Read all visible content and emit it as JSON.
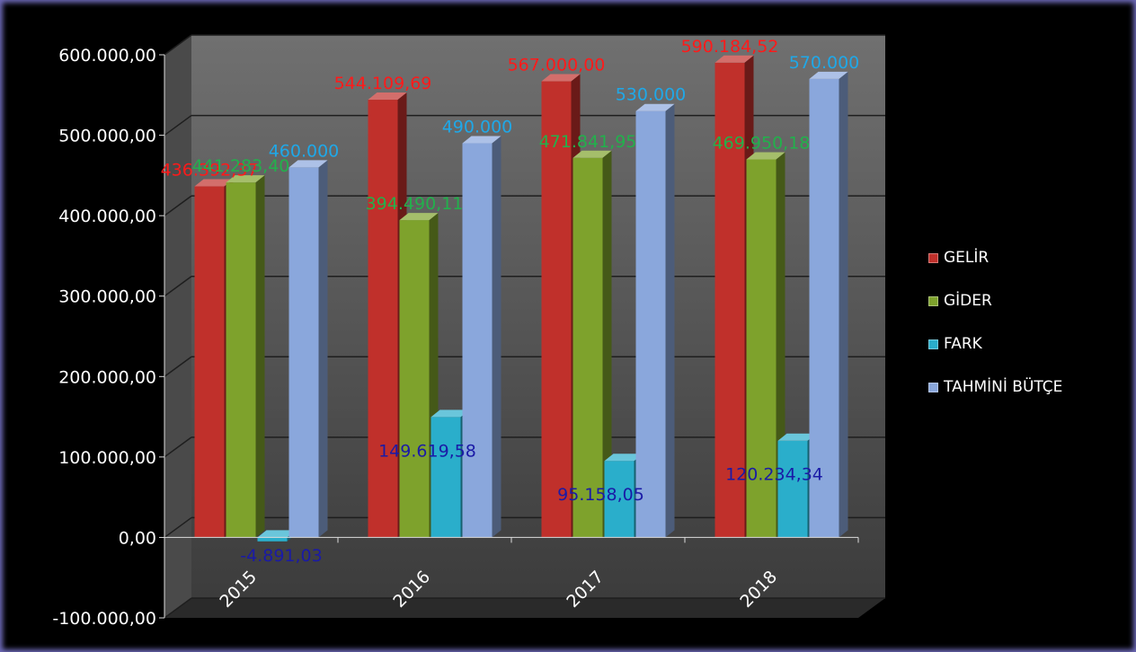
{
  "chart_data": {
    "type": "bar",
    "categories": [
      "2015",
      "2016",
      "2017",
      "2018"
    ],
    "series": [
      {
        "name": "GELİR",
        "values": [
          436392.37,
          544109.69,
          567000.0,
          590184.52
        ],
        "labels": [
          "436.392,37",
          "544.109,69",
          "567.000,00",
          "590.184,52"
        ],
        "color": "#c0302b",
        "label_color": "#ff1a1a"
      },
      {
        "name": "GİDER",
        "values": [
          441283.4,
          394490.11,
          471841.95,
          469950.18
        ],
        "labels": [
          "441.283,40",
          "394.490,11",
          "471.841,95",
          "469.950,18"
        ],
        "color": "#7ea22c",
        "label_color": "#22b14c"
      },
      {
        "name": "FARK",
        "values": [
          -4891.03,
          149619.58,
          95158.05,
          120234.34
        ],
        "labels": [
          "-4.891,03",
          "149.619,58",
          "95.158,05",
          "120.234,34"
        ],
        "color": "#2aaecb",
        "label_color": "#1a1aa6"
      },
      {
        "name": "TAHMİNİ BÜTÇE",
        "values": [
          460000,
          490000,
          530000,
          570000
        ],
        "labels": [
          "460.000",
          "490.000",
          "530.000",
          "570.000"
        ],
        "color": "#8aa7dc",
        "label_color": "#1fa8e8"
      }
    ],
    "yticks": [
      "600.000,00",
      "500.000,00",
      "400.000,00",
      "300.000,00",
      "200.000,00",
      "100.000,00",
      "0,00",
      "-100.000,00"
    ],
    "ylim": [
      -100000,
      600000
    ],
    "title": "",
    "xlabel": "",
    "ylabel": "",
    "grid": true,
    "legend": "right"
  }
}
